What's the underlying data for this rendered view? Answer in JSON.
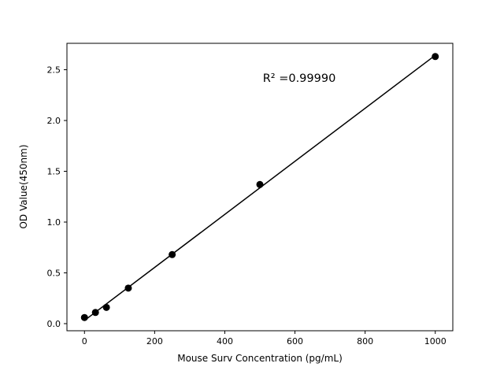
{
  "chart_data": {
    "type": "scatter",
    "title": "",
    "xlabel": "Mouse Surv Concentration (pg/mL)",
    "ylabel": "OD Value(450nm)",
    "annotation": "R² =0.99990",
    "x": [
      0,
      31.25,
      62.5,
      125,
      250,
      500,
      1000
    ],
    "y": [
      0.06,
      0.11,
      0.16,
      0.35,
      0.68,
      1.37,
      2.63
    ],
    "fit": "linear",
    "xlim": [
      -50,
      1050
    ],
    "ylim": [
      -0.07,
      2.76
    ],
    "xticks": [
      0,
      200,
      400,
      600,
      800,
      1000
    ],
    "xtick_labels": [
      "0",
      "200",
      "400",
      "600",
      "800",
      "1000"
    ],
    "yticks": [
      0.0,
      0.5,
      1.0,
      1.5,
      2.0,
      2.5
    ],
    "ytick_labels": [
      "0.0",
      "0.5",
      "1.0",
      "1.5",
      "2.0",
      "2.5"
    ],
    "grid": false,
    "legend": "none",
    "marker_color": "#000000",
    "line_color": "#000000",
    "axis_color": "#000000",
    "background": "#ffffff"
  }
}
